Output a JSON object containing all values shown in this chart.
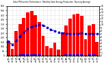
{
  "title": "Solar PV/Inverter Performance  Monthly Solar Energy Production  Running Average",
  "bar_values": [
    160,
    75,
    270,
    350,
    415,
    480,
    490,
    445,
    370,
    215,
    105,
    78,
    140,
    68,
    255,
    335,
    410,
    455,
    460,
    440,
    180,
    335,
    350,
    150
  ],
  "running_avg": [
    160,
    118,
    168,
    214,
    254,
    292,
    320,
    336,
    342,
    336,
    312,
    287,
    272,
    258,
    250,
    245,
    243,
    243,
    244,
    246,
    240,
    242,
    244,
    240
  ],
  "small_values": [
    4.5,
    2.5,
    7.5,
    9.5,
    11.5,
    13.5,
    13.5,
    12.5,
    10.5,
    6.0,
    3.0,
    2.0,
    4.0,
    2.0,
    7.0,
    9.5,
    11.5,
    13.0,
    13.0,
    12.5,
    5.0,
    9.5,
    10.0,
    4.0
  ],
  "bar_color": "#FF0000",
  "small_bar_color": "#0000FF",
  "avg_line_color": "#0000CC",
  "ylim": [
    0,
    550
  ],
  "y2lim": [
    0,
    16
  ],
  "yticks": [
    0,
    50,
    100,
    150,
    200,
    250,
    300,
    350,
    400,
    450,
    500,
    550
  ],
  "y2ticks": [
    0,
    1,
    2,
    3,
    4,
    5,
    6,
    7,
    8,
    9,
    10,
    11,
    12,
    13,
    14,
    15,
    16
  ],
  "background_color": "#FFFFFF",
  "grid_color": "#BBBBBB",
  "months": [
    "Jan\n'08",
    "Feb\n'08",
    "Mar\n'08",
    "Apr\n'08",
    "May\n'08",
    "Jun\n'08",
    "Jul\n'08",
    "Aug\n'08",
    "Sep\n'08",
    "Oct\n'08",
    "Nov\n'08",
    "Dec\n'08",
    "Jan\n'09",
    "Feb\n'09",
    "Mar\n'09",
    "Apr\n'09",
    "May\n'09",
    "Jun\n'09",
    "Jul\n'09",
    "Aug\n'09",
    "Sep\n'09",
    "Oct\n'09",
    "Nov\n'09",
    "Dec\n'09"
  ]
}
